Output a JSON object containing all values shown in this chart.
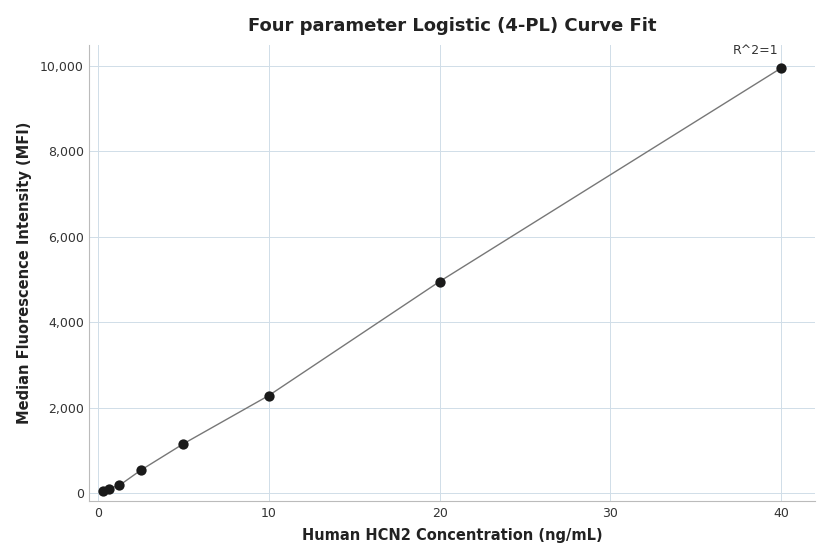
{
  "title": "Four parameter Logistic (4-PL) Curve Fit",
  "xlabel": "Human HCN2 Concentration (ng/mL)",
  "ylabel": "Median Fluorescence Intensity (MFI)",
  "x_data": [
    0.313,
    0.625,
    1.25,
    2.5,
    5.0,
    10.0,
    20.0,
    40.0
  ],
  "y_data": [
    50,
    100,
    175,
    530,
    1150,
    2280,
    4950,
    9950
  ],
  "xlim": [
    -0.5,
    42
  ],
  "ylim": [
    -200,
    10500
  ],
  "xticks": [
    0,
    10,
    20,
    30,
    40
  ],
  "yticks": [
    0,
    2000,
    4000,
    6000,
    8000,
    10000
  ],
  "ytick_labels": [
    "0",
    "2,000",
    "4,000",
    "6,000",
    "8,000",
    "10,000"
  ],
  "r2_text": "R^2=1",
  "dot_color": "#1a1a1a",
  "line_color": "#777777",
  "grid_color": "#d0dde8",
  "background_color": "#ffffff",
  "title_fontsize": 13,
  "axis_label_fontsize": 10.5,
  "tick_fontsize": 9,
  "annotation_fontsize": 9
}
